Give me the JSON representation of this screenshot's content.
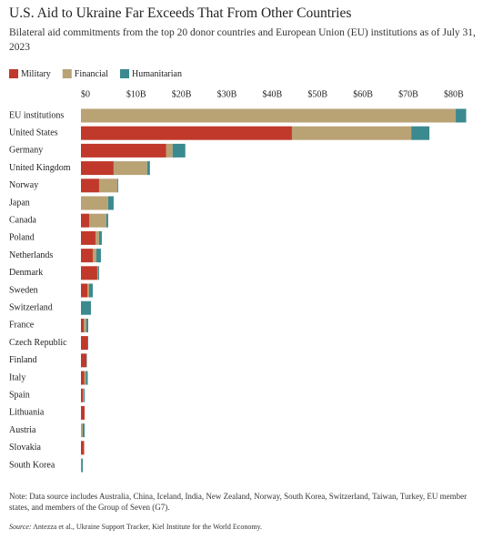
{
  "chart_data": {
    "type": "stacked-bar-horizontal",
    "title": "U.S. Aid to Ukraine Far Exceeds That From Other Countries",
    "subtitle": "Bilateral aid commitments from the top 20 donor countries and European Union (EU) institutions as of July 31, 2023",
    "categories": [
      "EU institutions",
      "United States",
      "Germany",
      "United Kingdom",
      "Norway",
      "Japan",
      "Canada",
      "Poland",
      "Netherlands",
      "Denmark",
      "Sweden",
      "Switzerland",
      "France",
      "Czech Republic",
      "Finland",
      "Italy",
      "Spain",
      "Lithuania",
      "Austria",
      "Slovakia",
      "South Korea"
    ],
    "series": [
      {
        "name": "Military",
        "color": "#c0392b",
        "values": [
          0,
          46.5,
          18.8,
          7.2,
          4.0,
          0,
          1.8,
          3.2,
          2.6,
          3.6,
          1.4,
          0,
          0.6,
          1.4,
          1.2,
          0.7,
          0.4,
          0.8,
          0,
          0.7,
          0
        ]
      },
      {
        "name": "Financial",
        "color": "#b9a274",
        "values": [
          82.6,
          26.3,
          1.4,
          7.4,
          4.0,
          6.0,
          3.8,
          0.8,
          0.8,
          0.2,
          0.4,
          0,
          0.6,
          0,
          0,
          0.4,
          0.2,
          0,
          0.4,
          0,
          0.1
        ]
      },
      {
        "name": "Humanitarian",
        "color": "#3b8a8f",
        "values": [
          2.3,
          4.0,
          2.8,
          0.6,
          0.2,
          1.2,
          0.4,
          0.6,
          1.0,
          0.2,
          0.8,
          2.2,
          0.4,
          0.2,
          0.1,
          0.4,
          0.2,
          0,
          0.4,
          0,
          0.3
        ]
      }
    ],
    "xlim": [
      0,
      85
    ],
    "xticks": [
      {
        "value": 0,
        "label": "$0"
      },
      {
        "value": 10,
        "label": "$10B"
      },
      {
        "value": 20,
        "label": "$20B"
      },
      {
        "value": 30,
        "label": "$30B"
      },
      {
        "value": 40,
        "label": "$40B"
      },
      {
        "value": 50,
        "label": "$50B"
      },
      {
        "value": 60,
        "label": "$60B"
      },
      {
        "value": 70,
        "label": "$70B"
      },
      {
        "value": 80,
        "label": "$80B"
      }
    ],
    "legend": "top-left",
    "note": "Note: Data source includes Australia, China, Iceland, India, New Zealand, Norway, South Korea, Switzerland, Taiwan, Turkey, EU member states, and members of the Group of Seven (G7).",
    "source_label": "Source:",
    "source": "Antezza et al., Ukraine Support Tracker, Kiel Institute for the World Economy."
  }
}
